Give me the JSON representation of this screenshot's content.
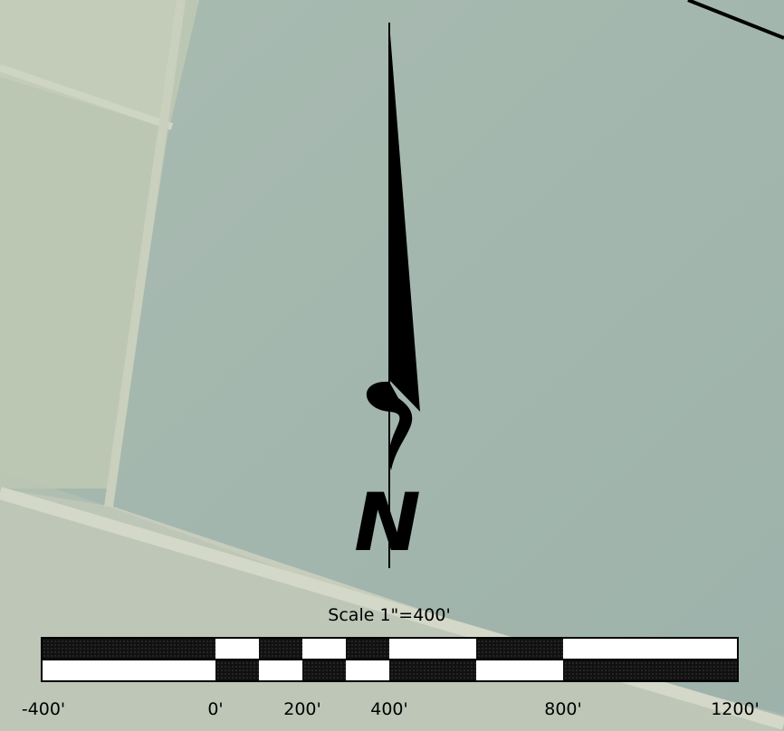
{
  "north_arrow": {
    "label": "N"
  },
  "scale_bar": {
    "title": "Scale 1\"=400'",
    "labels": [
      "-400'",
      "0'",
      "200'",
      "400'",
      "800'",
      "1200'"
    ]
  }
}
